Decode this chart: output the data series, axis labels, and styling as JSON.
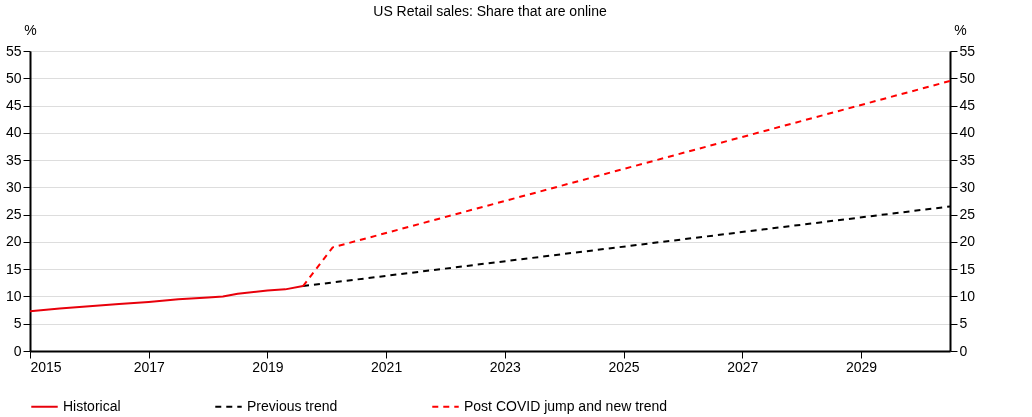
{
  "chart_data": {
    "type": "line",
    "title": "US Retail sales: Share that are online",
    "ylabel": "%",
    "y2label": "%",
    "xlim": [
      2015,
      2030.5
    ],
    "xticks": [
      2015,
      2017,
      2019,
      2021,
      2023,
      2025,
      2027,
      2029
    ],
    "ylim": [
      0,
      55
    ],
    "yticks": [
      0,
      5,
      10,
      15,
      20,
      25,
      30,
      35,
      40,
      45,
      50,
      55
    ],
    "y2lim": [
      0,
      55
    ],
    "y2ticks": [
      0,
      5,
      10,
      15,
      20,
      25,
      30,
      35,
      40,
      45,
      50,
      55
    ],
    "grid": "y",
    "legend": "bottom",
    "series": [
      {
        "name": "Historical",
        "color": "#e8000b",
        "line_style": "solid",
        "x": [
          2015,
          2015.5,
          2016,
          2016.5,
          2017,
          2017.5,
          2018,
          2018.25,
          2018.5,
          2019,
          2019.3,
          2019.6
        ],
        "values": [
          7.3,
          7.8,
          8.2,
          8.6,
          9.0,
          9.5,
          9.8,
          10.0,
          10.5,
          11.1,
          11.3,
          11.9
        ]
      },
      {
        "name": "Previous trend",
        "color": "#000000",
        "line_style": "dashed",
        "x": [
          2019.6,
          2030.5
        ],
        "values": [
          11.9,
          26.5
        ]
      },
      {
        "name": "Post COVID jump and new trend",
        "color": "#ff0000",
        "line_style": "dashed",
        "axis": "y2",
        "x": [
          2019.6,
          2020.1,
          2030.5
        ],
        "values": [
          11.9,
          19.0,
          49.5
        ]
      }
    ]
  }
}
